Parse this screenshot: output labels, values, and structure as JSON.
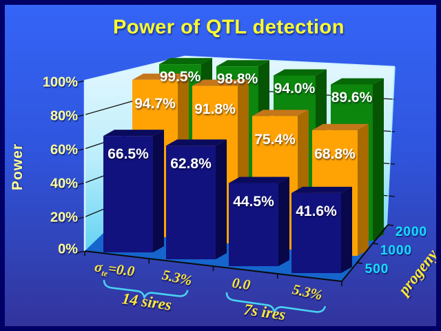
{
  "slide": {
    "background_top": "#3565F7",
    "background_bottom": "#32329B",
    "border_color": "#000066",
    "title_color": "#FFFF2E",
    "axis_text_color": "#FFFF99",
    "depth_text_color": "#12DFFF",
    "x_text_color": "#FFE93A",
    "wall_color_top": "#E4F7FE",
    "wall_color_bottom": "#46CAF1",
    "floor_color": "#1565CC"
  },
  "chart_data": {
    "type": "bar",
    "projection": "3d",
    "title": "Power of QTL detection",
    "ylabel": "Power",
    "y_ticks": [
      "100%",
      "80%",
      "60%",
      "40%",
      "20%",
      "0%"
    ],
    "ylim": [
      0,
      100
    ],
    "grid": true,
    "grid_interval_percent": 20,
    "categories": [
      "sigma_te=0.0 (14 sires)",
      "5.3% (14 sires)",
      "0.0 (7 sires)",
      "5.3% (7 sires)"
    ],
    "x_axis": {
      "sigma_base": "σ",
      "sigma_sub": "te",
      "sigma_rest": "=0.0",
      "tick2": "5.3%",
      "tick3": "0.0",
      "tick4": "5.3%",
      "group1": "14 sires",
      "group2": "7s ires"
    },
    "depth_axis": {
      "label": "progeny",
      "ticks": [
        "500",
        "1000",
        "2000"
      ]
    },
    "legend_position": "none",
    "series": [
      {
        "name": "500",
        "color": "#12127E",
        "values": [
          66.5,
          62.8,
          44.5,
          41.6
        ],
        "labels": [
          "66.5%",
          "62.8%",
          "44.5%",
          "41.6%"
        ]
      },
      {
        "name": "1000",
        "color": "#FFA305",
        "values": [
          94.7,
          91.8,
          75.4,
          68.8
        ],
        "labels": [
          "94.7%",
          "91.8%",
          "75.4%",
          "68.8%"
        ]
      },
      {
        "name": "2000",
        "color": "#0C860C",
        "values": [
          99.5,
          98.8,
          94.0,
          89.6
        ],
        "labels": [
          "99.5%",
          "98.8%",
          "94.0%",
          "89.6%"
        ]
      }
    ]
  }
}
